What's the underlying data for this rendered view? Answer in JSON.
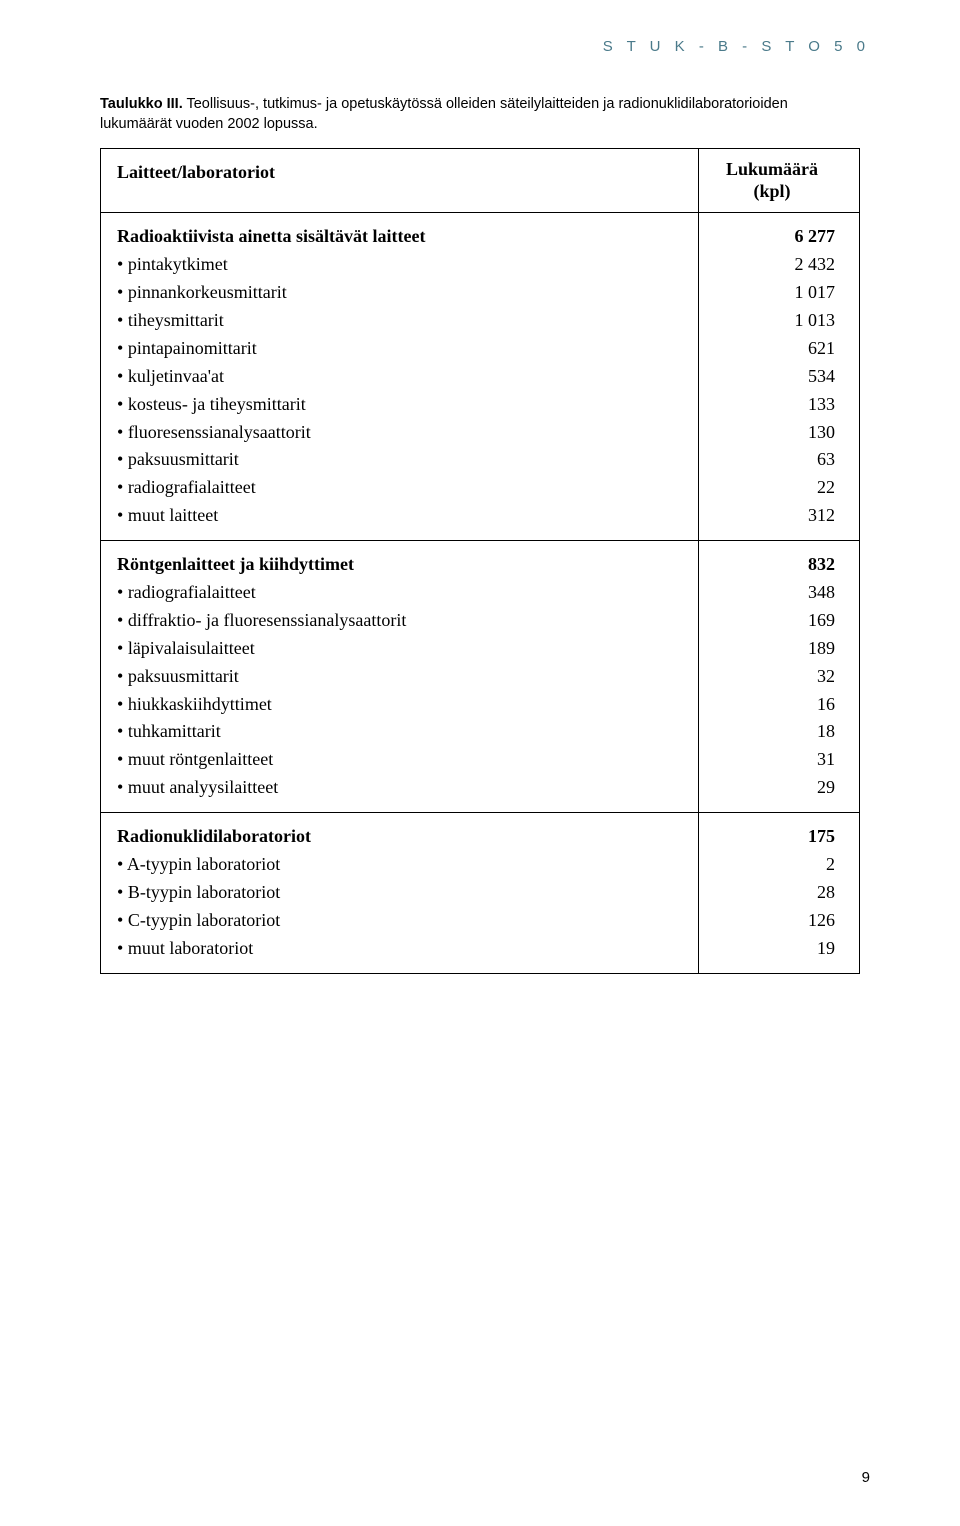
{
  "header": "S T U K - B - S T O 5 0",
  "caption_bold": "Taulukko III.",
  "caption_rest": " Teollisuus-, tutkimus- ja opetuskäytössä olleiden säteilylaitteiden ja radionuklidilaboratorioiden lukumäärät vuoden 2002 lopussa.",
  "col_left_head": "Laitteet/laboratoriot",
  "col_right_head_l1": "Lukumäärä",
  "col_right_head_l2": "(kpl)",
  "sec1": {
    "title": "Radioaktiivista ainetta sisältävät laitteet",
    "title_val": "6 277",
    "items": [
      {
        "label": "pintakytkimet",
        "val": "2 432"
      },
      {
        "label": "pinnankorkeusmittarit",
        "val": "1 017"
      },
      {
        "label": "tiheysmittarit",
        "val": "1 013"
      },
      {
        "label": "pintapainomittarit",
        "val": "621"
      },
      {
        "label": "kuljetinvaa'at",
        "val": "534"
      },
      {
        "label": "kosteus- ja tiheysmittarit",
        "val": "133"
      },
      {
        "label": "fluoresenssianalysaattorit",
        "val": "130"
      },
      {
        "label": "paksuusmittarit",
        "val": "63"
      },
      {
        "label": "radiografialaitteet",
        "val": "22"
      },
      {
        "label": "muut laitteet",
        "val": "312"
      }
    ]
  },
  "sec2": {
    "title": "Röntgenlaitteet ja kiihdyttimet",
    "title_val": "832",
    "items": [
      {
        "label": "radiografialaitteet",
        "val": "348"
      },
      {
        "label": "diffraktio- ja fluoresenssianalysaattorit",
        "val": "169"
      },
      {
        "label": "läpivalaisulaitteet",
        "val": "189"
      },
      {
        "label": "paksuusmittarit",
        "val": "32"
      },
      {
        "label": "hiukkaskiihdyttimet",
        "val": "16"
      },
      {
        "label": "tuhkamittarit",
        "val": "18"
      },
      {
        "label": "muut röntgenlaitteet",
        "val": "31"
      },
      {
        "label": "muut analyysilaitteet",
        "val": "29"
      }
    ]
  },
  "sec3": {
    "title": "Radionuklidilaboratoriot",
    "title_val": "175",
    "items": [
      {
        "label": "A-tyypin laboratoriot",
        "val": "2"
      },
      {
        "label": "B-tyypin laboratoriot",
        "val": "28"
      },
      {
        "label": "C-tyypin laboratoriot",
        "val": "126"
      },
      {
        "label": "muut laboratoriot",
        "val": "19"
      }
    ]
  },
  "page_number": "9"
}
